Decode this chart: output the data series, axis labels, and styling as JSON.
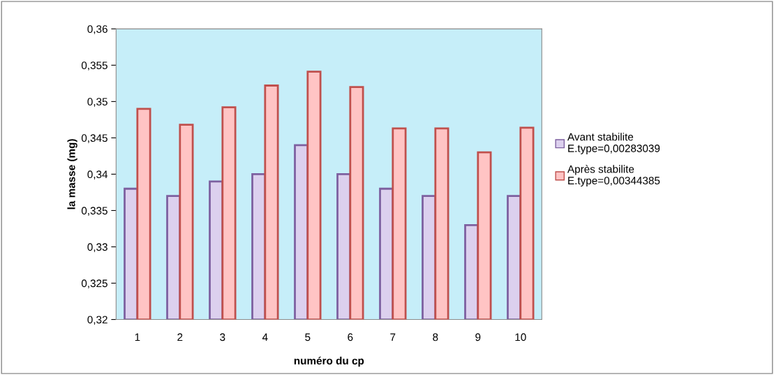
{
  "chart_data": {
    "type": "bar",
    "xlabel": "numéro du cp",
    "ylabel": "la masse (mg)",
    "categories": [
      "1",
      "2",
      "3",
      "4",
      "5",
      "6",
      "7",
      "8",
      "9",
      "10"
    ],
    "series": [
      {
        "name": "Avant stabilite\nE.type=0,00283039",
        "color": "#dcd0ee",
        "values": [
          0.338,
          0.337,
          0.339,
          0.34,
          0.344,
          0.34,
          0.338,
          0.337,
          0.333,
          0.337
        ]
      },
      {
        "name": "Après stabilite\nE.type=0,00344385",
        "color": "#ffc4c4",
        "values": [
          0.349,
          0.3468,
          0.3492,
          0.3522,
          0.3541,
          0.352,
          0.3463,
          0.3463,
          0.343,
          0.3464
        ]
      }
    ],
    "ylim": [
      0.32,
      0.36
    ],
    "yticks": [
      {
        "value": 0.32,
        "label": "0,32"
      },
      {
        "value": 0.325,
        "label": "0,325"
      },
      {
        "value": 0.33,
        "label": "0,33"
      },
      {
        "value": 0.335,
        "label": "0,335"
      },
      {
        "value": 0.34,
        "label": "0,34"
      },
      {
        "value": 0.345,
        "label": "0,345"
      },
      {
        "value": 0.35,
        "label": "0,35"
      },
      {
        "value": 0.355,
        "label": "0,355"
      },
      {
        "value": 0.36,
        "label": "0,36"
      }
    ],
    "grid": false,
    "legend": "right"
  }
}
